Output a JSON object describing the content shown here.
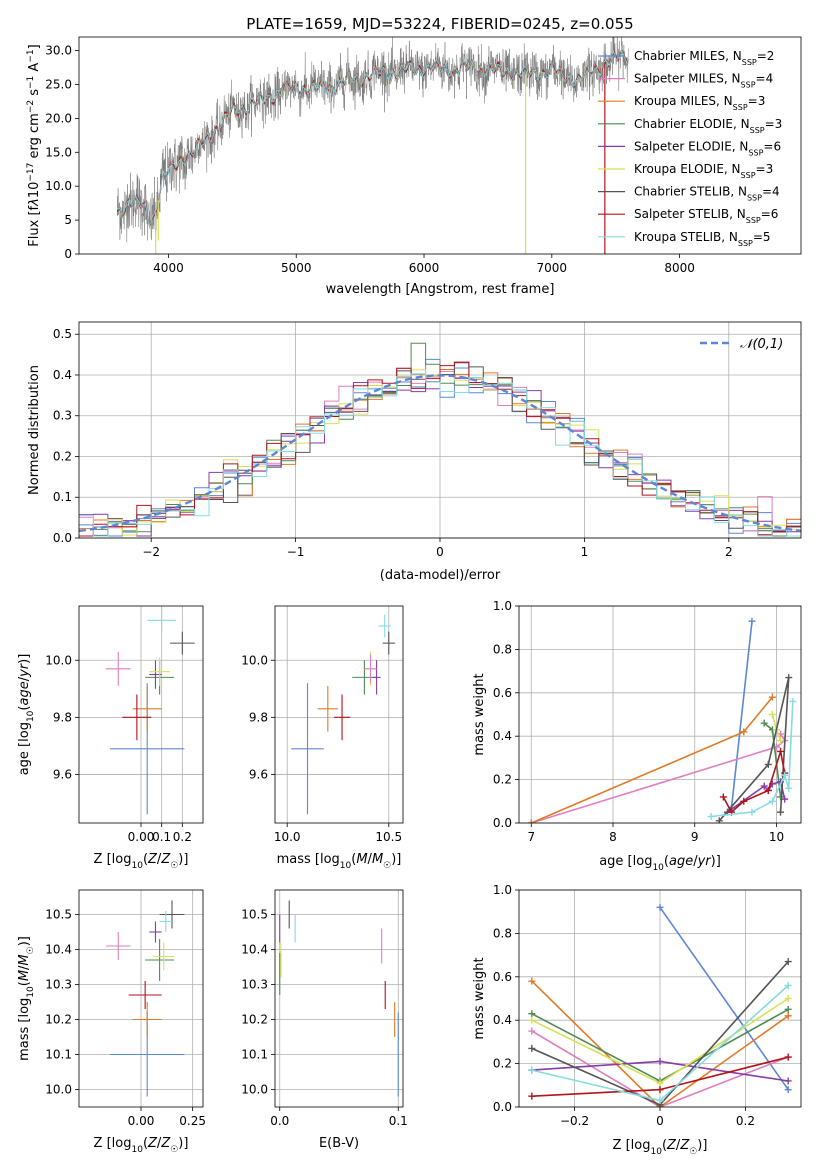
{
  "figure_title": "PLATE=1659, MJD=53224, FIBERID=0245, z=0.055",
  "colors": {
    "Chabrier MILES": "#5b87d6",
    "Salpeter MILES": "#e07fc0",
    "Kroupa MILES": "#e07a26",
    "Chabrier ELODIE": "#4f8a55",
    "Salpeter ELODIE": "#8b3aaa",
    "Kroupa ELODIE": "#d8e055",
    "Chabrier STELIB": "#555555",
    "Salpeter STELIB": "#b0141a",
    "Kroupa STELIB": "#85dbe0",
    "data": "#777777",
    "grid": "#b0b0b0"
  },
  "chart_data": [
    {
      "type": "line",
      "title": "",
      "xlabel": "wavelength [Angstrom, rest frame]",
      "ylabel": "Flux [f_λ10^-17 erg cm^-2 s^-1 A^-1]",
      "xlim": [
        3300,
        8950
      ],
      "ylim": [
        0,
        32
      ],
      "xticks": [
        4000,
        5000,
        6000,
        7000,
        8000
      ],
      "yticks": [
        0,
        5,
        10,
        15,
        20,
        25,
        30
      ],
      "grid": false,
      "legend_position": "right",
      "legend": [
        {
          "label": "Chabrier MILES",
          "nssp": "2"
        },
        {
          "label": "Salpeter MILES",
          "nssp": "4"
        },
        {
          "label": "Kroupa MILES",
          "nssp": "3"
        },
        {
          "label": "Chabrier ELODIE",
          "nssp": "3"
        },
        {
          "label": "Salpeter ELODIE",
          "nssp": "6"
        },
        {
          "label": "Kroupa ELODIE",
          "nssp": "3"
        },
        {
          "label": "Chabrier STELIB",
          "nssp": "4"
        },
        {
          "label": "Salpeter STELIB",
          "nssp": "6"
        },
        {
          "label": "Kroupa STELIB",
          "nssp": "5"
        }
      ],
      "spectrum_continuum": {
        "wavelength": [
          3600,
          3700,
          3800,
          3850,
          3900,
          3950,
          4000,
          4100,
          4200,
          4300,
          4400,
          4500,
          4700,
          4900,
          5000,
          5200,
          5400,
          5600,
          5800,
          6000,
          6200,
          6400,
          6600,
          6800,
          7000,
          7200,
          7400,
          7600
        ],
        "flux": [
          6,
          8,
          7,
          5,
          6,
          11,
          12,
          14,
          15,
          17,
          19,
          21,
          22.5,
          24,
          24.5,
          24.5,
          25.5,
          26.5,
          27,
          27.5,
          27.3,
          27.5,
          27,
          26.5,
          27,
          25.5,
          28,
          29.5
        ]
      },
      "spikes": [
        {
          "x": 3900,
          "y": 0
        },
        {
          "x": 3920,
          "y": 2
        },
        {
          "x": 6795,
          "y": 0
        },
        {
          "x": 7415,
          "y": 0
        }
      ]
    },
    {
      "type": "histogram",
      "title": "",
      "xlabel": "(data-model)/error",
      "ylabel": "Normed distribution",
      "xlim": [
        -2.5,
        2.5
      ],
      "ylim": [
        0,
        0.53
      ],
      "xticks": [
        -2,
        -1,
        0,
        1,
        2
      ],
      "yticks": [
        0.0,
        0.1,
        0.2,
        0.3,
        0.4,
        0.5
      ],
      "grid": true,
      "legend_position": "top-right",
      "reference_label": "𝒩(0,1)",
      "reference_curve": {
        "mean": 0,
        "sigma": 1
      },
      "bin_width": 0.1
    },
    {
      "type": "scatter",
      "title": "",
      "xlabel": "Z [log10(Z/Z☉)]",
      "ylabel": "age [log10(age/yr)]",
      "xlim": [
        -0.3,
        0.3
      ],
      "ylim": [
        9.43,
        10.19
      ],
      "xticks": [
        0.0,
        0.1,
        0.2
      ],
      "xtick_labels": [
        "0.00",
        "0.1",
        "0.2"
      ],
      "yticks": [
        9.6,
        9.8,
        10.0
      ],
      "grid": true,
      "points": [
        {
          "model": "Chabrier MILES",
          "x": 0.03,
          "y": 9.69,
          "xerr": 0.18,
          "yerr": 0.23
        },
        {
          "model": "Salpeter MILES",
          "x": -0.11,
          "y": 9.97,
          "xerr": 0.06,
          "yerr": 0.06
        },
        {
          "model": "Kroupa MILES",
          "x": 0.03,
          "y": 9.83,
          "xerr": 0.07,
          "yerr": 0.08
        },
        {
          "model": "Chabrier ELODIE",
          "x": 0.09,
          "y": 9.94,
          "xerr": 0.07,
          "yerr": 0.06
        },
        {
          "model": "Salpeter ELODIE",
          "x": 0.07,
          "y": 9.95,
          "xerr": 0.03,
          "yerr": 0.05
        },
        {
          "model": "Kroupa ELODIE",
          "x": 0.09,
          "y": 9.96,
          "xerr": 0.05,
          "yerr": 0.05
        },
        {
          "model": "Chabrier STELIB",
          "x": 0.2,
          "y": 10.06,
          "xerr": 0.06,
          "yerr": 0.04
        },
        {
          "model": "Salpeter STELIB",
          "x": -0.02,
          "y": 9.8,
          "xerr": 0.07,
          "yerr": 0.08
        },
        {
          "model": "Kroupa STELIB",
          "x": 0.1,
          "y": 10.14,
          "xerr": 0.07,
          "yerr": 0.04
        }
      ]
    },
    {
      "type": "scatter",
      "title": "",
      "xlabel": "mass [log10(M/M☉)]",
      "ylabel": "",
      "xlim": [
        9.94,
        10.57
      ],
      "ylim": [
        9.43,
        10.19
      ],
      "xticks": [
        10.0,
        10.5
      ],
      "xtick_labels": [
        "10.0",
        "10.5"
      ],
      "yticks": [
        9.6,
        9.8,
        10.0
      ],
      "grid": true,
      "points": [
        {
          "model": "Chabrier MILES",
          "x": 10.1,
          "y": 9.69,
          "xerr": 0.08,
          "yerr": 0.23
        },
        {
          "model": "Kroupa MILES",
          "x": 10.2,
          "y": 9.83,
          "xerr": 0.05,
          "yerr": 0.08
        },
        {
          "model": "Salpeter STELIB",
          "x": 10.27,
          "y": 9.8,
          "xerr": 0.04,
          "yerr": 0.08
        },
        {
          "model": "Chabrier ELODIE",
          "x": 10.38,
          "y": 9.94,
          "xerr": 0.06,
          "yerr": 0.06
        },
        {
          "model": "Salpeter ELODIE",
          "x": 10.44,
          "y": 9.94,
          "xerr": 0.02,
          "yerr": 0.06
        },
        {
          "model": "Kroupa ELODIE",
          "x": 10.41,
          "y": 9.97,
          "xerr": 0.03,
          "yerr": 0.06
        },
        {
          "model": "Salpeter MILES",
          "x": 10.41,
          "y": 9.97,
          "xerr": 0.03,
          "yerr": 0.05
        },
        {
          "model": "Chabrier STELIB",
          "x": 10.5,
          "y": 10.06,
          "xerr": 0.03,
          "yerr": 0.04
        },
        {
          "model": "Kroupa STELIB",
          "x": 10.48,
          "y": 10.12,
          "xerr": 0.03,
          "yerr": 0.04
        }
      ]
    },
    {
      "type": "line",
      "title": "",
      "xlabel": "age [log10(age/yr)]",
      "ylabel": "mass weight",
      "xlim": [
        6.85,
        10.3
      ],
      "ylim": [
        0,
        1
      ],
      "xticks": [
        7,
        8,
        9,
        10
      ],
      "yticks": [
        0.0,
        0.2,
        0.4,
        0.6,
        0.8,
        1.0
      ],
      "grid": true,
      "series": [
        {
          "model": "Chabrier MILES",
          "x": [
            9.45,
            9.7
          ],
          "y": [
            0.07,
            0.93
          ]
        },
        {
          "model": "Salpeter MILES",
          "x": [
            7.0,
            10.0,
            10.1,
            10.05
          ],
          "y": [
            0.0,
            0.35,
            0.38,
            0.41
          ]
        },
        {
          "model": "Kroupa MILES",
          "x": [
            7.0,
            9.6,
            9.95
          ],
          "y": [
            0.0,
            0.42,
            0.58
          ]
        },
        {
          "model": "Chabrier ELODIE",
          "x": [
            9.85,
            9.95,
            10.05
          ],
          "y": [
            0.46,
            0.43,
            0.12
          ]
        },
        {
          "model": "Salpeter ELODIE",
          "x": [
            9.4,
            9.85,
            9.9,
            9.95,
            10.05,
            10.1
          ],
          "y": [
            0.05,
            0.17,
            0.15,
            0.18,
            0.19,
            0.11
          ]
        },
        {
          "model": "Kroupa ELODIE",
          "x": [
            9.95,
            10.0,
            10.05
          ],
          "y": [
            0.5,
            0.43,
            0.38
          ]
        },
        {
          "model": "Chabrier STELIB",
          "x": [
            9.3,
            9.9,
            10.15,
            10.05
          ],
          "y": [
            0.01,
            0.27,
            0.67,
            0.05
          ]
        },
        {
          "model": "Salpeter STELIB",
          "x": [
            9.35,
            9.45,
            9.6,
            9.9,
            10.05,
            10.1
          ],
          "y": [
            0.12,
            0.05,
            0.1,
            0.15,
            0.33,
            0.23
          ]
        },
        {
          "model": "Kroupa STELIB",
          "x": [
            9.2,
            9.7,
            9.95,
            10.1,
            10.15,
            10.2
          ],
          "y": [
            0.03,
            0.05,
            0.1,
            0.22,
            0.16,
            0.56
          ]
        }
      ]
    },
    {
      "type": "scatter",
      "title": "",
      "xlabel": "Z [log10(Z/Z☉)]",
      "ylabel": "mass [log10(M/M☉)]",
      "xlim": [
        -0.3,
        0.3
      ],
      "ylim": [
        9.95,
        10.57
      ],
      "xticks": [
        0.0,
        0.25
      ],
      "xtick_labels": [
        "0.00",
        "0.25"
      ],
      "yticks": [
        10.0,
        10.1,
        10.2,
        10.3,
        10.4,
        10.5
      ],
      "grid": true,
      "points": [
        {
          "model": "Chabrier MILES",
          "x": 0.03,
          "y": 10.1,
          "xerr": 0.18,
          "yerr": 0.12
        },
        {
          "model": "Salpeter MILES",
          "x": -0.11,
          "y": 10.41,
          "xerr": 0.06,
          "yerr": 0.04
        },
        {
          "model": "Kroupa MILES",
          "x": 0.03,
          "y": 10.2,
          "xerr": 0.07,
          "yerr": 0.05
        },
        {
          "model": "Chabrier ELODIE",
          "x": 0.09,
          "y": 10.37,
          "xerr": 0.07,
          "yerr": 0.06
        },
        {
          "model": "Salpeter ELODIE",
          "x": 0.07,
          "y": 10.45,
          "xerr": 0.03,
          "yerr": 0.03
        },
        {
          "model": "Kroupa ELODIE",
          "x": 0.11,
          "y": 10.38,
          "xerr": 0.05,
          "yerr": 0.04
        },
        {
          "model": "Chabrier STELIB",
          "x": 0.15,
          "y": 10.5,
          "xerr": 0.06,
          "yerr": 0.04
        },
        {
          "model": "Salpeter STELIB",
          "x": 0.02,
          "y": 10.27,
          "xerr": 0.08,
          "yerr": 0.04
        },
        {
          "model": "Kroupa STELIB",
          "x": 0.12,
          "y": 10.48,
          "xerr": 0.03,
          "yerr": 0.03
        }
      ]
    },
    {
      "type": "scatter",
      "title": "",
      "xlabel": "E(B-V)",
      "ylabel": "",
      "xlim": [
        -0.004,
        0.104
      ],
      "ylim": [
        9.95,
        10.57
      ],
      "xticks": [
        0.0,
        0.1
      ],
      "xtick_labels": [
        "0.0",
        "0.1"
      ],
      "yticks": [
        10.0,
        10.1,
        10.2,
        10.3,
        10.4,
        10.5
      ],
      "grid": true,
      "points": [
        {
          "model": "Chabrier MILES",
          "x": 0.1,
          "y": 10.1,
          "yerr": 0.12
        },
        {
          "model": "Salpeter MILES",
          "x": 0.086,
          "y": 10.41,
          "yerr": 0.05
        },
        {
          "model": "Kroupa MILES",
          "x": 0.097,
          "y": 10.2,
          "yerr": 0.05
        },
        {
          "model": "Chabrier ELODIE",
          "x": 0.0,
          "y": 10.33,
          "yerr": 0.06
        },
        {
          "model": "Salpeter ELODIE",
          "x": 0.0,
          "y": 10.46,
          "yerr": 0.04
        },
        {
          "model": "Kroupa ELODIE",
          "x": 0.001,
          "y": 10.37,
          "yerr": 0.05
        },
        {
          "model": "Chabrier STELIB",
          "x": 0.008,
          "y": 10.5,
          "yerr": 0.04
        },
        {
          "model": "Salpeter STELIB",
          "x": 0.089,
          "y": 10.27,
          "yerr": 0.04
        },
        {
          "model": "Kroupa STELIB",
          "x": 0.013,
          "y": 10.46,
          "yerr": 0.04
        }
      ]
    },
    {
      "type": "line",
      "title": "",
      "xlabel": "Z [log10(Z/Z☉)]",
      "ylabel": "mass weight",
      "xlim": [
        -0.33,
        0.33
      ],
      "ylim": [
        0,
        1
      ],
      "xticks": [
        -0.2,
        0.0,
        0.2
      ],
      "yticks": [
        0.0,
        0.2,
        0.4,
        0.6,
        0.8,
        1.0
      ],
      "grid": true,
      "series": [
        {
          "model": "Chabrier MILES",
          "x": [
            0.0,
            0.3
          ],
          "y": [
            0.92,
            0.08
          ]
        },
        {
          "model": "Salpeter MILES",
          "x": [
            -0.3,
            0.0,
            0.3
          ],
          "y": [
            0.35,
            0.0,
            0.23
          ]
        },
        {
          "model": "Kroupa MILES",
          "x": [
            -0.3,
            0.0,
            0.3
          ],
          "y": [
            0.58,
            0.0,
            0.42
          ]
        },
        {
          "model": "Chabrier ELODIE",
          "x": [
            -0.3,
            0.0,
            0.3
          ],
          "y": [
            0.43,
            0.12,
            0.45
          ]
        },
        {
          "model": "Salpeter ELODIE",
          "x": [
            -0.3,
            0.0,
            0.3
          ],
          "y": [
            0.17,
            0.21,
            0.12
          ]
        },
        {
          "model": "Kroupa ELODIE",
          "x": [
            -0.3,
            0.0,
            0.3
          ],
          "y": [
            0.4,
            0.11,
            0.5
          ]
        },
        {
          "model": "Chabrier STELIB",
          "x": [
            -0.3,
            0.0,
            0.3
          ],
          "y": [
            0.27,
            0.01,
            0.67
          ]
        },
        {
          "model": "Salpeter STELIB",
          "x": [
            -0.3,
            0.0,
            0.3
          ],
          "y": [
            0.05,
            0.08,
            0.23
          ]
        },
        {
          "model": "Kroupa STELIB",
          "x": [
            -0.3,
            0.0,
            0.3
          ],
          "y": [
            0.17,
            0.03,
            0.56
          ]
        }
      ]
    }
  ]
}
